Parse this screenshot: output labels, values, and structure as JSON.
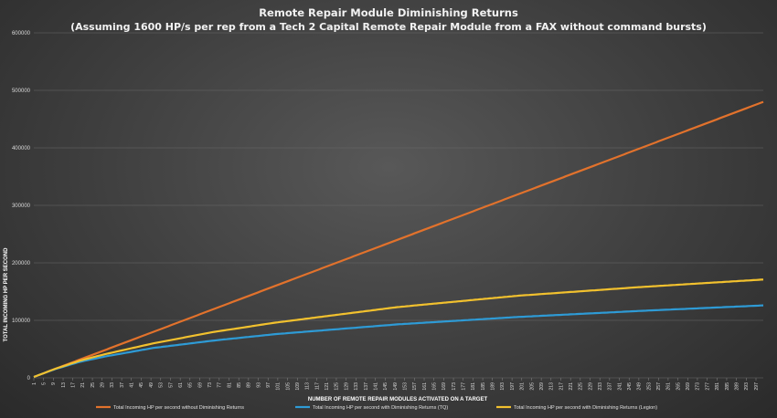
{
  "chart_data": {
    "type": "line",
    "title": "Remote Repair Module Diminishing Returns",
    "subtitle": "(Assuming 1600 HP/s per rep from a Tech 2 Capital Remote Repair Module from a FAX without command bursts)",
    "xlabel": "NUMBER OF REMOTE REPAIR MODULES ACTIVATED ON A TARGET",
    "ylabel": "TOTAL INCOMING HP PER SECOND",
    "xlim": [
      1,
      300
    ],
    "ylim": [
      0,
      600000
    ],
    "yticks": [
      0,
      100000,
      200000,
      300000,
      400000,
      500000,
      600000
    ],
    "ytick_labels": [
      "0",
      "100000",
      "200000",
      "300000",
      "400000",
      "500000",
      "600000"
    ],
    "xtick_labels": [
      "1",
      "5",
      "9",
      "13",
      "17",
      "21",
      "25",
      "29",
      "33",
      "37",
      "41",
      "45",
      "49",
      "53",
      "57",
      "61",
      "65",
      "69",
      "73",
      "77",
      "81",
      "85",
      "89",
      "93",
      "97",
      "101",
      "105",
      "109",
      "113",
      "117",
      "121",
      "125",
      "129",
      "133",
      "137",
      "141",
      "145",
      "149",
      "153",
      "157",
      "161",
      "165",
      "169",
      "173",
      "177",
      "181",
      "185",
      "189",
      "193",
      "197",
      "201",
      "205",
      "209",
      "213",
      "217",
      "221",
      "225",
      "229",
      "233",
      "237",
      "241",
      "245",
      "249",
      "253",
      "257",
      "261",
      "265",
      "269",
      "273",
      "277",
      "281",
      "285",
      "289",
      "293",
      "297"
    ],
    "grid": true,
    "legend_position": "bottom",
    "series": [
      {
        "name": "Total Incoming HP per second without Diminishing Returns",
        "color": "#e2722c",
        "x": [
          1,
          10,
          25,
          50,
          75,
          100,
          150,
          200,
          250,
          300
        ],
        "y": [
          1600,
          16000,
          40000,
          80000,
          120000,
          160000,
          240000,
          320000,
          400000,
          480000
        ]
      },
      {
        "name": "Total Incoming HP per second with Diminishing Returns (TQ)",
        "color": "#2e9bd6",
        "x": [
          1,
          5,
          10,
          20,
          30,
          50,
          75,
          100,
          150,
          200,
          250,
          300
        ],
        "y": [
          1600,
          8000,
          15500,
          28000,
          37000,
          52000,
          65000,
          76000,
          93000,
          106000,
          116500,
          126000
        ]
      },
      {
        "name": "Total Incoming HP per second with Diminishing Returns (Legion)",
        "color": "#f2c12e",
        "x": [
          1,
          5,
          10,
          20,
          30,
          50,
          75,
          100,
          150,
          200,
          250,
          300
        ],
        "y": [
          1600,
          8000,
          16000,
          30000,
          41000,
          60000,
          80000,
          96000,
          123000,
          143000,
          158000,
          171000
        ]
      }
    ]
  }
}
